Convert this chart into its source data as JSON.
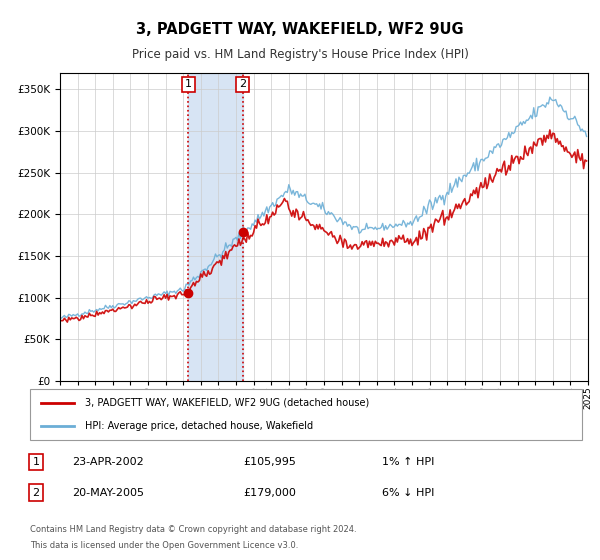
{
  "title": "3, PADGETT WAY, WAKEFIELD, WF2 9UG",
  "subtitle": "Price paid vs. HM Land Registry's House Price Index (HPI)",
  "sale1_date": "23-APR-2002",
  "sale1_price": 105995,
  "sale1_hpi_pct": "1% ↑ HPI",
  "sale1_year": 2002.3,
  "sale2_date": "20-MAY-2005",
  "sale2_price": 179000,
  "sale2_hpi_pct": "6% ↓ HPI",
  "sale2_year": 2005.38,
  "legend_line1": "3, PADGETT WAY, WAKEFIELD, WF2 9UG (detached house)",
  "legend_line2": "HPI: Average price, detached house, Wakefield",
  "footer1": "Contains HM Land Registry data © Crown copyright and database right 2024.",
  "footer2": "This data is licensed under the Open Government Licence v3.0.",
  "hpi_color": "#6baed6",
  "price_color": "#cc0000",
  "shade_color": "#c6d9f0",
  "ylim_max": 370000,
  "ylim_min": 0
}
